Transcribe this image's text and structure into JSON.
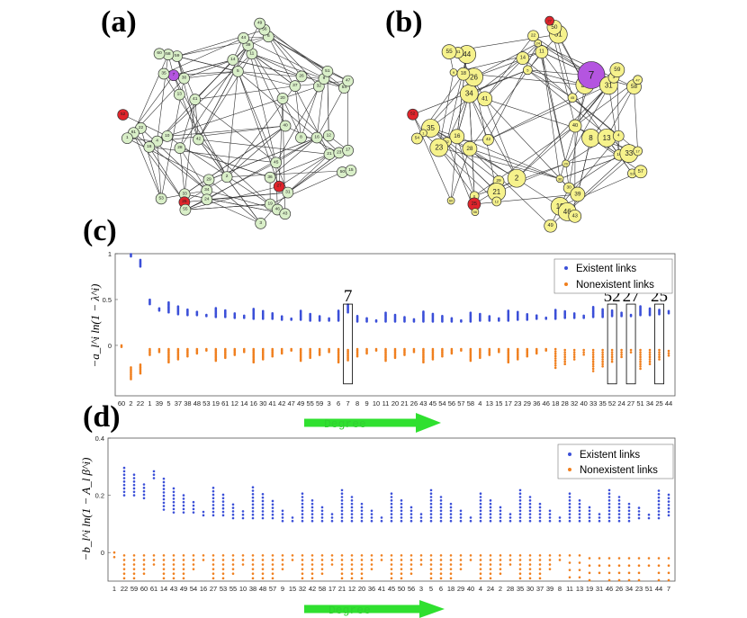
{
  "panels": {
    "a": {
      "letter": "(a)"
    },
    "b": {
      "letter": "(b)"
    },
    "c": {
      "letter": "(c)",
      "ylabel": "−a_l^i ln(1 − λ^i)"
    },
    "d": {
      "letter": "(d)",
      "ylabel": "−b_l^i ln(1 − A_l β^i)"
    }
  },
  "colors": {
    "existent": "#3b4fd8",
    "nonexistent": "#f07f1e",
    "node_light": "#d9efc8",
    "node_yellow": "#f6f28c",
    "node_red": "#e0242b",
    "node_purple": "#b455e0",
    "arrow": "#2fe02f"
  },
  "network_a": {
    "nodes": [
      {
        "id": "40"
      },
      {
        "id": "42"
      },
      {
        "id": "20"
      },
      {
        "id": "45"
      },
      {
        "id": "41"
      },
      {
        "id": "8"
      },
      {
        "id": "2"
      },
      {
        "id": "5"
      },
      {
        "id": "36"
      },
      {
        "id": "28"
      },
      {
        "id": "37"
      },
      {
        "id": "29"
      },
      {
        "id": "13"
      },
      {
        "id": "16"
      },
      {
        "id": "10"
      },
      {
        "id": "14"
      },
      {
        "id": "27",
        "kind": "red"
      },
      {
        "id": "30"
      },
      {
        "id": "26"
      },
      {
        "id": "34"
      },
      {
        "id": "11"
      },
      {
        "id": "12"
      },
      {
        "id": "4"
      },
      {
        "id": "32"
      },
      {
        "id": "31"
      },
      {
        "id": "7",
        "kind": "purple"
      },
      {
        "id": "21"
      },
      {
        "id": "24"
      },
      {
        "id": "39"
      },
      {
        "id": "19"
      },
      {
        "id": "18"
      },
      {
        "id": "9"
      },
      {
        "id": "33"
      },
      {
        "id": "35"
      },
      {
        "id": "23"
      },
      {
        "id": "22"
      },
      {
        "id": "44"
      },
      {
        "id": "46"
      },
      {
        "id": "59"
      },
      {
        "id": "51"
      },
      {
        "id": "25",
        "kind": "red"
      },
      {
        "id": "6"
      },
      {
        "id": "17"
      },
      {
        "id": "61"
      },
      {
        "id": "54"
      },
      {
        "id": "43"
      },
      {
        "id": "58"
      },
      {
        "id": "50"
      },
      {
        "id": "55"
      },
      {
        "id": "56"
      },
      {
        "id": "3"
      },
      {
        "id": "1"
      },
      {
        "id": "47"
      },
      {
        "id": "53"
      },
      {
        "id": "60"
      },
      {
        "id": "15"
      },
      {
        "id": "52",
        "kind": "red"
      },
      {
        "id": "49"
      }
    ]
  },
  "network_b": {
    "nodes": [
      {
        "id": "40"
      },
      {
        "id": "42"
      },
      {
        "id": "45"
      },
      {
        "id": "20"
      },
      {
        "id": "41"
      },
      {
        "id": "8"
      },
      {
        "id": "2"
      },
      {
        "id": "5"
      },
      {
        "id": "36"
      },
      {
        "id": "28"
      },
      {
        "id": "37"
      },
      {
        "id": "29"
      },
      {
        "id": "34"
      },
      {
        "id": "13"
      },
      {
        "id": "16"
      },
      {
        "id": "14"
      },
      {
        "id": "30"
      },
      {
        "id": "26"
      },
      {
        "id": "7",
        "kind": "purple"
      },
      {
        "id": "21"
      },
      {
        "id": "11"
      },
      {
        "id": "4"
      },
      {
        "id": "32"
      },
      {
        "id": "31"
      },
      {
        "id": "39"
      },
      {
        "id": "18"
      },
      {
        "id": "10"
      },
      {
        "id": "12"
      },
      {
        "id": "24"
      },
      {
        "id": "19"
      },
      {
        "id": "23"
      },
      {
        "id": "3"
      },
      {
        "id": "6"
      },
      {
        "id": "9"
      },
      {
        "id": "33"
      },
      {
        "id": "35"
      },
      {
        "id": "22"
      },
      {
        "id": "46"
      },
      {
        "id": "44"
      },
      {
        "id": "59"
      },
      {
        "id": "25",
        "kind": "red"
      },
      {
        "id": "51"
      },
      {
        "id": "17"
      },
      {
        "id": "1"
      },
      {
        "id": "58"
      },
      {
        "id": "43"
      },
      {
        "id": "61"
      },
      {
        "id": "53"
      },
      {
        "id": "56"
      },
      {
        "id": "50"
      },
      {
        "id": "49"
      },
      {
        "id": "54"
      },
      {
        "id": "47"
      },
      {
        "id": "60"
      },
      {
        "id": "55"
      },
      {
        "id": "57"
      },
      {
        "id": "52",
        "kind": "red"
      },
      {
        "id": "27",
        "kind": "red"
      }
    ]
  },
  "chart_data": [
    {
      "type": "scatter",
      "panel": "c",
      "ylabel": "−a_l^i ln(1 − λ^i)",
      "xlabel": "Degree",
      "ylim": [
        -0.55,
        1.0
      ],
      "yticks": [
        "1",
        "0.5",
        "0"
      ],
      "categories": [
        "60",
        "2",
        "22",
        "1",
        "39",
        "5",
        "37",
        "38",
        "48",
        "53",
        "19",
        "61",
        "12",
        "14",
        "16",
        "30",
        "41",
        "42",
        "47",
        "49",
        "55",
        "59",
        "3",
        "6",
        "7",
        "8",
        "9",
        "10",
        "11",
        "20",
        "21",
        "26",
        "43",
        "45",
        "54",
        "56",
        "57",
        "58",
        "4",
        "13",
        "15",
        "17",
        "23",
        "29",
        "36",
        "46",
        "18",
        "28",
        "32",
        "40",
        "33",
        "35",
        "52",
        "24",
        "27",
        "51",
        "34",
        "25",
        "44"
      ],
      "series": [
        {
          "name": "Existent links",
          "values": [
            null,
            0.97,
            0.86,
            0.45,
            0.38,
            0.36,
            0.34,
            0.33,
            0.33,
            0.32,
            0.31,
            0.31,
            0.3,
            0.3,
            0.29,
            0.29,
            0.29,
            0.28,
            0.28,
            0.28,
            0.27,
            0.27,
            0.27,
            0.27,
            0.36,
            0.26,
            0.26,
            0.26,
            0.26,
            0.26,
            0.26,
            0.26,
            0.26,
            0.26,
            0.26,
            0.26,
            0.26,
            0.26,
            0.27,
            0.27,
            0.27,
            0.27,
            0.28,
            0.28,
            0.29,
            0.29,
            0.29,
            0.3,
            0.3,
            0.3,
            0.31,
            0.31,
            0.32,
            0.32,
            0.32,
            0.33,
            0.33,
            0.34,
            0.35
          ]
        },
        {
          "name": "Nonexistent links",
          "values": [
            0.0,
            -0.24,
            -0.21,
            -0.04,
            -0.04,
            -0.04,
            -0.04,
            -0.04,
            -0.04,
            -0.04,
            -0.04,
            -0.04,
            -0.04,
            -0.04,
            -0.04,
            -0.04,
            -0.04,
            -0.04,
            -0.04,
            -0.04,
            -0.04,
            -0.04,
            -0.04,
            -0.04,
            -0.05,
            -0.04,
            -0.04,
            -0.04,
            -0.04,
            -0.04,
            -0.04,
            -0.04,
            -0.04,
            -0.04,
            -0.04,
            -0.04,
            -0.04,
            -0.04,
            -0.04,
            -0.04,
            -0.04,
            -0.04,
            -0.04,
            -0.04,
            -0.04,
            -0.04,
            -0.04,
            -0.05,
            -0.05,
            -0.05,
            -0.05,
            -0.05,
            -0.05,
            -0.05,
            -0.05,
            -0.05,
            -0.05,
            -0.05,
            -0.06
          ]
        }
      ],
      "highlight_boxes": [
        {
          "category": "7",
          "label": "7"
        },
        {
          "category": "52",
          "label": "52"
        },
        {
          "category": "27",
          "label": "27"
        },
        {
          "category": "25",
          "label": "25"
        }
      ],
      "legend": {
        "entries": [
          "Existent links",
          "Nonexistent links"
        ],
        "position": "top-right"
      }
    },
    {
      "type": "scatter",
      "panel": "d",
      "ylabel": "−b_l^i ln(1 − A_l β^i)",
      "xlabel": "Degree",
      "ylim": [
        -0.1,
        0.4
      ],
      "yticks": [
        "0.4",
        "0.2",
        "0"
      ],
      "categories": [
        "1",
        "22",
        "59",
        "60",
        "61",
        "14",
        "43",
        "49",
        "54",
        "16",
        "27",
        "53",
        "55",
        "10",
        "38",
        "48",
        "57",
        "9",
        "15",
        "32",
        "42",
        "58",
        "17",
        "21",
        "12",
        "20",
        "36",
        "41",
        "45",
        "50",
        "56",
        "3",
        "5",
        "6",
        "18",
        "29",
        "40",
        "4",
        "24",
        "2",
        "28",
        "35",
        "30",
        "37",
        "39",
        "8",
        "11",
        "13",
        "19",
        "31",
        "46",
        "26",
        "34",
        "23",
        "51",
        "44",
        "7"
      ],
      "series": [
        {
          "name": "Existent links",
          "values": [
            null,
            0.2,
            0.2,
            0.19,
            0.26,
            0.15,
            0.14,
            0.14,
            0.14,
            0.13,
            0.13,
            0.13,
            0.12,
            0.12,
            0.12,
            0.12,
            0.12,
            0.11,
            0.11,
            0.11,
            0.11,
            0.11,
            0.11,
            0.11,
            0.11,
            0.11,
            0.11,
            0.11,
            0.11,
            0.11,
            0.11,
            0.11,
            0.11,
            0.11,
            0.11,
            0.11,
            0.11,
            0.11,
            0.11,
            0.11,
            0.11,
            0.11,
            0.11,
            0.11,
            0.11,
            0.11,
            0.11,
            0.11,
            0.11,
            0.11,
            0.11,
            0.11,
            0.11,
            0.12,
            0.12,
            0.12,
            0.13
          ]
        },
        {
          "name": "Nonexistent links",
          "values": [
            0.0,
            -0.01,
            -0.01,
            -0.01,
            -0.01,
            -0.01,
            -0.01,
            -0.01,
            -0.01,
            -0.01,
            -0.01,
            -0.01,
            -0.01,
            -0.01,
            -0.01,
            -0.01,
            -0.01,
            -0.01,
            -0.01,
            -0.01,
            -0.01,
            -0.01,
            -0.01,
            -0.01,
            -0.01,
            -0.01,
            -0.01,
            -0.01,
            -0.01,
            -0.01,
            -0.01,
            -0.01,
            -0.01,
            -0.01,
            -0.01,
            -0.01,
            -0.01,
            -0.01,
            -0.01,
            -0.01,
            -0.01,
            -0.01,
            -0.01,
            -0.01,
            -0.01,
            -0.01,
            -0.01,
            -0.01,
            -0.02,
            -0.02,
            -0.02,
            -0.02,
            -0.02,
            -0.02,
            -0.02,
            -0.02,
            -0.02
          ]
        }
      ],
      "legend": {
        "entries": [
          "Existent links",
          "Nonexistent links"
        ],
        "position": "top-right"
      }
    }
  ]
}
